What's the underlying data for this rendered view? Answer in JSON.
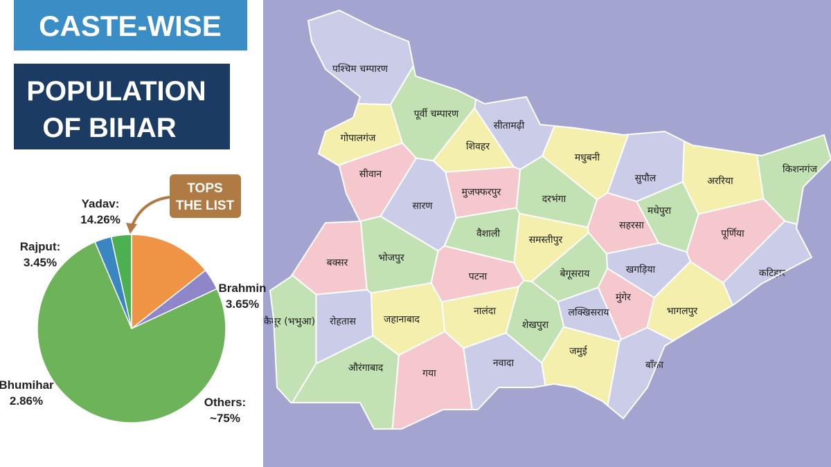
{
  "header": {
    "title_line1": "CASTE-WISE",
    "title_line2": "POPULATION",
    "title_line3": "OF BIHAR"
  },
  "callout": {
    "line1": "TOPS",
    "line2": "THE LIST"
  },
  "chart_data": {
    "type": "pie",
    "categories": [
      "Yadav:",
      "Brahmin",
      "Others:",
      "Bhumihar",
      "Rajput:"
    ],
    "values": [
      14.26,
      3.65,
      75,
      2.86,
      3.45
    ],
    "value_labels": [
      "14.26%",
      "3.65%",
      "~75%",
      "2.86%",
      "3.45%"
    ],
    "colors": [
      "#ee9444",
      "#8e86c8",
      "#6db35a",
      "#3a86c0",
      "#4caf50"
    ]
  },
  "map": {
    "districts": [
      {
        "label": "पश्चिम चम्पारण",
        "color": "#cbcde8"
      },
      {
        "label": "पूर्वी चम्पारण",
        "color": "#c3e2b4"
      },
      {
        "label": "सीतामढ़ी",
        "color": "#cbcde8"
      },
      {
        "label": "शिवहर",
        "color": "#f4efad"
      },
      {
        "label": "गोपालगंज",
        "color": "#f4efad"
      },
      {
        "label": "सीवान",
        "color": "#f5c8ce"
      },
      {
        "label": "सारण",
        "color": "#cbcde8"
      },
      {
        "label": "मुजफ्फरपुर",
        "color": "#f5c8ce"
      },
      {
        "label": "मधुबनी",
        "color": "#f4efad"
      },
      {
        "label": "दरभंगा",
        "color": "#c3e2b4"
      },
      {
        "label": "सुपौल",
        "color": "#cbcde8"
      },
      {
        "label": "अररिया",
        "color": "#f4efad"
      },
      {
        "label": "किशनगंज",
        "color": "#c3e2b4"
      },
      {
        "label": "मधेपुरा",
        "color": "#c3e2b4"
      },
      {
        "label": "सहरसा",
        "color": "#f5c8ce"
      },
      {
        "label": "पूर्णिया",
        "color": "#f5c8ce"
      },
      {
        "label": "वैशाली",
        "color": "#c3e2b4"
      },
      {
        "label": "समस्तीपुर",
        "color": "#f4efad"
      },
      {
        "label": "बक्सर",
        "color": "#f5c8ce"
      },
      {
        "label": "भोजपुर",
        "color": "#c3e2b4"
      },
      {
        "label": "पटना",
        "color": "#f5c8ce"
      },
      {
        "label": "बेगूसराय",
        "color": "#c3e2b4"
      },
      {
        "label": "खगड़िया",
        "color": "#cbcde8"
      },
      {
        "label": "कटिहार",
        "color": "#cbcde8"
      },
      {
        "label": "कैमूर (भभुआ)",
        "color": "#c3e2b4"
      },
      {
        "label": "रोहतास",
        "color": "#cbcde8"
      },
      {
        "label": "जहानाबाद",
        "color": "#f4efad"
      },
      {
        "label": "नालंदा",
        "color": "#f4efad"
      },
      {
        "label": "मुंगेर",
        "color": "#f5c8ce"
      },
      {
        "label": "लक्खिसराय",
        "color": "#cbcde8"
      },
      {
        "label": "भागलपुर",
        "color": "#f4efad"
      },
      {
        "label": "शेखपुरा",
        "color": "#c3e2b4"
      },
      {
        "label": "औरंगाबाद",
        "color": "#c3e2b4"
      },
      {
        "label": "गया",
        "color": "#f5c8ce"
      },
      {
        "label": "नवादा",
        "color": "#cbcde8"
      },
      {
        "label": "जमुई",
        "color": "#f4efad"
      },
      {
        "label": "बाँका",
        "color": "#cbcde8"
      }
    ]
  }
}
